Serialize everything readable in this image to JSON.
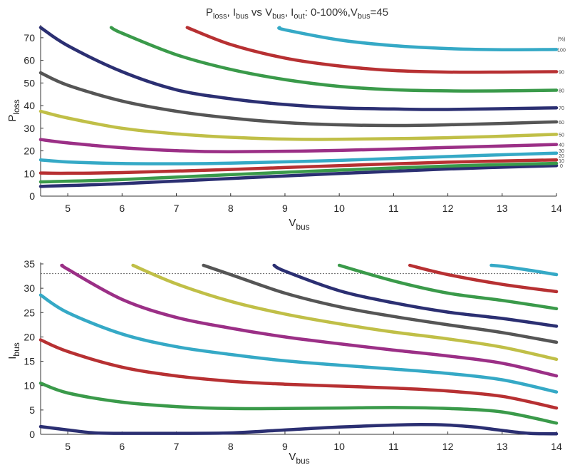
{
  "title": {
    "p": "P",
    "p_sub": "loss",
    "i": ", I",
    "i_sub": "bus",
    "vs": " vs V",
    "vs_sub": "bus",
    "iout": ", I",
    "iout_sub": "out",
    "range": ": 0-100%,V",
    "range_sub": "bus",
    "eq": "=45"
  },
  "units_label": "(%)",
  "colors": [
    "#2b2f72",
    "#3a9a4a",
    "#b73032",
    "#35a9c6",
    "#9b2f86",
    "#c0bf47",
    "#555555",
    "#2b2f72",
    "#3a9a4a",
    "#b73032",
    "#35a9c6"
  ],
  "chart_data": [
    {
      "type": "line",
      "xlabel": "V",
      "xlabel_sub": "bus",
      "ylabel": "P",
      "ylabel_sub": "loss",
      "xlim": [
        4.5,
        14
      ],
      "ylim": [
        0,
        75
      ],
      "xticks": [
        5,
        6,
        7,
        8,
        9,
        10,
        11,
        12,
        13,
        14
      ],
      "yticks": [
        0,
        10,
        20,
        30,
        40,
        50,
        60,
        70
      ],
      "series": [
        {
          "name": "0",
          "x": [
            4.5,
            6,
            8,
            10,
            12,
            14
          ],
          "y": [
            4.3,
            5.5,
            7.8,
            10.0,
            12.0,
            13.5
          ]
        },
        {
          "name": "10",
          "x": [
            4.5,
            6,
            8,
            10,
            12,
            14
          ],
          "y": [
            6.3,
            7.3,
            9.5,
            11.5,
            13.3,
            14.5
          ]
        },
        {
          "name": "20",
          "x": [
            4.5,
            5,
            6,
            8,
            10,
            12,
            14
          ],
          "y": [
            10.2,
            10.1,
            10.4,
            11.8,
            13.5,
            15.0,
            16.0
          ]
        },
        {
          "name": "30",
          "x": [
            4.5,
            5,
            6,
            7,
            8,
            10,
            12,
            14
          ],
          "y": [
            16.0,
            15.1,
            14.4,
            14.3,
            14.6,
            15.8,
            17.5,
            19.0
          ]
        },
        {
          "name": "40",
          "x": [
            4.5,
            5,
            6,
            7,
            8,
            10,
            12,
            14
          ],
          "y": [
            25.0,
            23.5,
            21.4,
            20.1,
            19.6,
            20.2,
            21.5,
            22.8
          ]
        },
        {
          "name": "50",
          "x": [
            4.5,
            5,
            6,
            7,
            8,
            9,
            10,
            12,
            14
          ],
          "y": [
            37.5,
            34.5,
            30.0,
            27.5,
            26.0,
            25.2,
            25.1,
            25.8,
            27.3
          ]
        },
        {
          "name": "60",
          "x": [
            4.5,
            5,
            6,
            7,
            8,
            9,
            10,
            11,
            12,
            14
          ],
          "y": [
            54.5,
            49.0,
            42.0,
            37.5,
            34.5,
            32.5,
            31.5,
            31.2,
            31.5,
            32.8
          ]
        },
        {
          "name": "70",
          "x": [
            4.5,
            5,
            6,
            7,
            8,
            9,
            10,
            11,
            12,
            14
          ],
          "y": [
            74.5,
            66.5,
            55.0,
            47.0,
            43.0,
            40.5,
            39.0,
            38.5,
            38.3,
            39.0
          ]
        },
        {
          "name": "80",
          "x": [
            5.8,
            6,
            7,
            8,
            9,
            10,
            11,
            12,
            13,
            14
          ],
          "y": [
            74.5,
            72.0,
            62.5,
            56.0,
            51.5,
            48.5,
            47.0,
            46.5,
            46.5,
            46.8
          ]
        },
        {
          "name": "90",
          "x": [
            7.2,
            8,
            9,
            10,
            11,
            12,
            13,
            14
          ],
          "y": [
            74.5,
            67.0,
            61.0,
            57.5,
            55.5,
            54.8,
            54.8,
            55.0
          ]
        },
        {
          "name": "100",
          "x": [
            8.9,
            9,
            10,
            11,
            12,
            13,
            14
          ],
          "y": [
            74.5,
            73.5,
            69.0,
            66.5,
            65.2,
            64.7,
            64.8
          ]
        }
      ],
      "end_labels": [
        "0",
        "10",
        "20",
        "30",
        "40",
        "50",
        "60",
        "70",
        "80",
        "90",
        "100"
      ]
    },
    {
      "type": "line",
      "xlabel": "V",
      "xlabel_sub": "bus",
      "ylabel": "I",
      "ylabel_sub": "bus",
      "xlim": [
        4.5,
        14
      ],
      "ylim": [
        0,
        35
      ],
      "xticks": [
        5,
        6,
        7,
        8,
        9,
        10,
        11,
        12,
        13,
        14
      ],
      "yticks": [
        0,
        5,
        10,
        15,
        20,
        25,
        30,
        35
      ],
      "ref_line": 33,
      "series": [
        {
          "name": "0",
          "x": [
            4.5,
            5,
            5.5,
            6,
            7,
            8,
            9,
            10,
            11,
            11.5,
            12,
            12.5,
            13,
            13.5,
            14
          ],
          "y": [
            1.6,
            0.9,
            0.3,
            0.2,
            0.2,
            0.3,
            0.9,
            1.5,
            1.9,
            2.0,
            1.9,
            1.5,
            0.8,
            0.2,
            0.1
          ]
        },
        {
          "name": "10",
          "x": [
            4.5,
            5,
            6,
            7,
            8,
            9,
            10,
            11,
            12,
            13,
            14
          ],
          "y": [
            10.5,
            8.5,
            6.6,
            5.7,
            5.3,
            5.3,
            5.4,
            5.5,
            5.3,
            4.6,
            2.3
          ]
        },
        {
          "name": "20",
          "x": [
            4.5,
            5,
            6,
            7,
            8,
            9,
            10,
            11,
            12,
            13,
            14
          ],
          "y": [
            19.4,
            17.0,
            13.8,
            12.0,
            10.9,
            10.3,
            9.9,
            9.5,
            8.9,
            7.8,
            5.4
          ]
        },
        {
          "name": "30",
          "x": [
            4.5,
            5,
            6,
            7,
            8,
            9,
            10,
            11,
            12,
            13,
            14
          ],
          "y": [
            28.6,
            25.0,
            20.6,
            18.0,
            16.4,
            15.1,
            14.2,
            13.4,
            12.5,
            11.2,
            8.7
          ]
        },
        {
          "name": "40",
          "x": [
            4.9,
            5,
            6,
            7,
            8,
            9,
            10,
            11,
            12,
            13,
            14
          ],
          "y": [
            34.7,
            33.9,
            27.7,
            24.0,
            21.8,
            20.0,
            18.6,
            17.3,
            16.1,
            14.6,
            12.0
          ]
        },
        {
          "name": "50",
          "x": [
            6.2,
            7,
            8,
            9,
            10,
            11,
            12,
            13,
            14
          ],
          "y": [
            34.7,
            30.9,
            27.3,
            24.7,
            22.7,
            21.0,
            19.6,
            17.9,
            15.4
          ]
        },
        {
          "name": "60",
          "x": [
            7.5,
            8,
            9,
            10,
            11,
            12,
            13,
            14
          ],
          "y": [
            34.7,
            32.8,
            29.0,
            26.2,
            24.2,
            22.5,
            20.9,
            18.9
          ]
        },
        {
          "name": "70",
          "x": [
            8.8,
            9,
            10,
            11,
            12,
            13,
            14
          ],
          "y": [
            34.7,
            33.5,
            29.5,
            27.0,
            25.1,
            23.8,
            22.2
          ]
        },
        {
          "name": "80",
          "x": [
            10.0,
            11,
            12,
            13,
            14
          ],
          "y": [
            34.7,
            31.5,
            29.0,
            27.5,
            25.8
          ]
        },
        {
          "name": "90",
          "x": [
            11.3,
            12,
            13,
            14
          ],
          "y": [
            34.7,
            32.8,
            30.8,
            29.3
          ]
        },
        {
          "name": "100",
          "x": [
            12.8,
            13,
            13.5,
            14
          ],
          "y": [
            34.7,
            34.5,
            33.7,
            32.8
          ]
        }
      ]
    }
  ]
}
